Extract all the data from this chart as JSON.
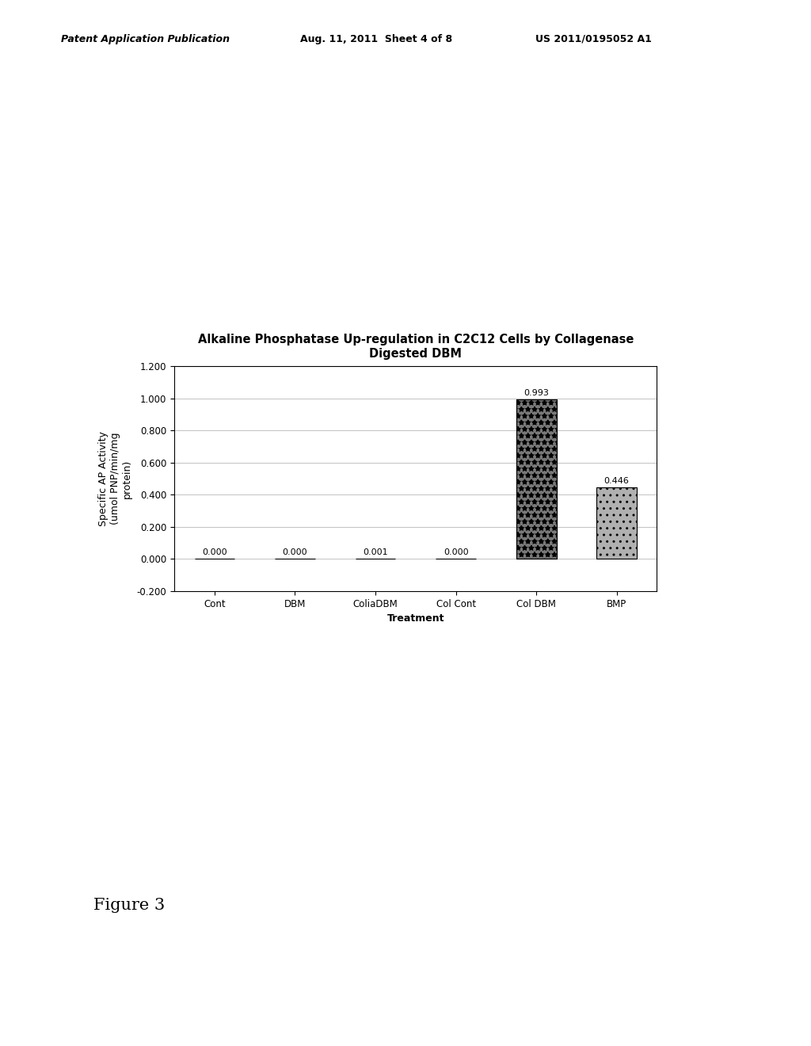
{
  "title_line1": "Alkaline Phosphatase Up-regulation in C2C12 Cells by Collagenase",
  "title_line2": "Digested DBM",
  "categories": [
    "Cont",
    "DBM",
    "ColiaDBM",
    "Col Cont",
    "Col DBM",
    "BMP"
  ],
  "values": [
    0.0,
    0.0,
    0.001,
    0.0,
    0.993,
    0.446
  ],
  "value_labels": [
    "0.000",
    "0.000",
    "0.001",
    "0.000",
    "0.993",
    "0.446"
  ],
  "xlabel": "Treatment",
  "ylabel": "Specific AP Activity\n(umol PNP/min/mg\nprotein)",
  "ylim": [
    -0.2,
    1.2
  ],
  "yticks": [
    -0.2,
    0.0,
    0.2,
    0.4,
    0.6,
    0.8,
    1.0,
    1.2
  ],
  "background_color": "#ffffff",
  "header_left": "Patent Application Publication",
  "header_mid": "Aug. 11, 2011  Sheet 4 of 8",
  "header_right": "US 2011/0195052 A1",
  "figure_label": "Figure 3",
  "title_fontsize": 10.5,
  "axis_fontsize": 9,
  "tick_fontsize": 8.5,
  "header_fontsize": 9
}
